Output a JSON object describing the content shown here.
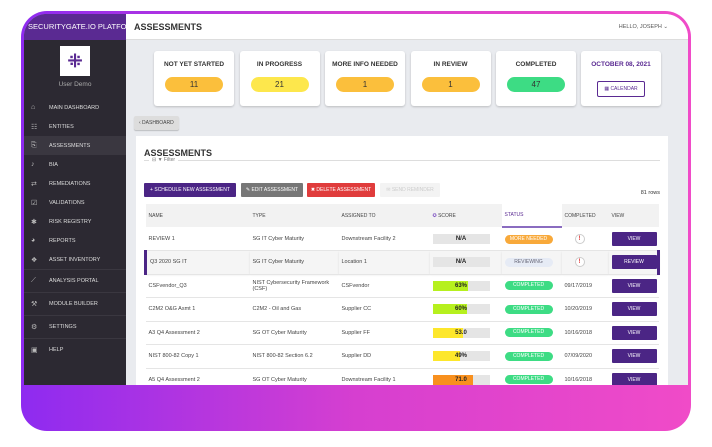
{
  "sidebar": {
    "brand": "SECURITYGATE.IO PLATFORM",
    "user": "User Demo",
    "items": [
      {
        "label": "MAIN DASHBOARD",
        "icon": "home-icon"
      },
      {
        "label": "ENTITIES",
        "icon": "users-icon"
      },
      {
        "label": "ASSESSMENTS",
        "icon": "clipboard-icon",
        "active": true
      },
      {
        "label": "BIA",
        "icon": "bell-icon"
      },
      {
        "label": "REMEDIATIONS",
        "icon": "arrows-icon"
      },
      {
        "label": "VALIDATIONS",
        "icon": "checkbox-icon"
      },
      {
        "label": "RISK REGISTRY",
        "icon": "bug-icon"
      },
      {
        "label": "REPORTS",
        "icon": "pie-icon"
      },
      {
        "label": "ASSET INVENTORY",
        "icon": "assets-icon"
      },
      {
        "label": "ANALYSIS PORTAL",
        "icon": "chart-icon"
      },
      {
        "label": "MODULE BUILDER",
        "icon": "wrench-icon"
      },
      {
        "label": "SETTINGS",
        "icon": "gears-icon"
      },
      {
        "label": "HELP",
        "icon": "help-icon"
      }
    ]
  },
  "header": {
    "title": "ASSESSMENTS",
    "greeting": "HELLO, JOSEPH"
  },
  "cards": [
    {
      "label": "NOT YET STARTED",
      "value": "11",
      "color": "#fbbf3c"
    },
    {
      "label": "IN PROGRESS",
      "value": "21",
      "color": "#fde74c"
    },
    {
      "label": "MORE INFO NEEDED",
      "value": "1",
      "color": "#fbbf3c"
    },
    {
      "label": "IN REVIEW",
      "value": "1",
      "color": "#fbbf3c"
    },
    {
      "label": "COMPLETED",
      "value": "47",
      "color": "#3ddc84"
    }
  ],
  "date": {
    "value": "OCTOBER 08, 2021",
    "calendar": "CALENDAR"
  },
  "back": "‹ DASHBOARD",
  "panel": {
    "title": "ASSESSMENTS",
    "filter": "⊟ ▼ Filter",
    "rows": "81 rows",
    "buttons": {
      "schedule": "+ SCHEDULE NEW ASSESSMENT",
      "edit": "✎ EDIT ASSESSMENT",
      "delete": "✖ DELETE ASSESSMENT",
      "remind": "✉ SEND REMINDER"
    },
    "columns": [
      "NAME",
      "TYPE",
      "ASSIGNED TO",
      "SCORE",
      "STATUS",
      "COMPLETED",
      "VIEW"
    ],
    "data": [
      {
        "name": "REVIEW 1",
        "type": "SG IT Cyber Maturity",
        "assigned": "Downstream Facility 2",
        "score": "N/A",
        "pct": 0,
        "bar": "#e5e5e5",
        "status": "MORE NEEDED",
        "scolor": "#f8a93a",
        "completed": "!",
        "view": "VIEW"
      },
      {
        "name": "Q3 2020 SG IT",
        "type": "SG IT Cyber Maturity",
        "assigned": "Location 1",
        "score": "N/A",
        "pct": 0,
        "bar": "#e5e5e5",
        "status": "REVIEWING",
        "scolor": "#e6ebf5",
        "completed": "!",
        "view": "REVIEW"
      },
      {
        "name": "CSFvendor_Q3",
        "type": "NIST Cybersecurity Framework (CSF)",
        "assigned": "CSFvendor",
        "score": "63%",
        "pct": 63,
        "bar": "#b6f01e",
        "status": "COMPLETED",
        "scolor": "#3ddc84",
        "completed": "09/17/2019",
        "view": "VIEW"
      },
      {
        "name": "C2M2 O&G Asmt 1",
        "type": "C2M2 - Oil and Gas",
        "assigned": "Supplier CC",
        "score": "60%",
        "pct": 60,
        "bar": "#b6f01e",
        "status": "COMPLETED",
        "scolor": "#3ddc84",
        "completed": "10/20/2019",
        "view": "VIEW"
      },
      {
        "name": "A3 Q4 Assessment 2",
        "type": "SG OT Cyber Maturity",
        "assigned": "Supplier FF",
        "score": "53.0",
        "pct": 53,
        "bar": "#fde72c",
        "status": "COMPLETED",
        "scolor": "#3ddc84",
        "completed": "10/16/2018",
        "view": "VIEW"
      },
      {
        "name": "NIST 800-82 Copy 1",
        "type": "NIST 800-82 Section 6.2",
        "assigned": "Supplier DD",
        "score": "49%",
        "pct": 49,
        "bar": "#fde72c",
        "status": "COMPLETED",
        "scolor": "#3ddc84",
        "completed": "07/09/2020",
        "view": "VIEW"
      },
      {
        "name": "A5 Q4 Assessment 2",
        "type": "SG OT Cyber Maturity",
        "assigned": "Downstream Facility 1",
        "score": "71.0",
        "pct": 71,
        "bar": "#f8901e",
        "status": "COMPLETED",
        "scolor": "#3ddc84",
        "completed": "10/16/2018",
        "view": "VIEW"
      }
    ]
  }
}
